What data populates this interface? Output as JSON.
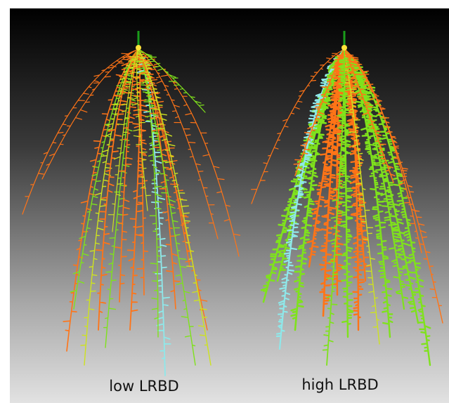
{
  "panels": [
    {
      "label": "low LRBD"
    },
    {
      "label": "high LRBD"
    }
  ]
}
